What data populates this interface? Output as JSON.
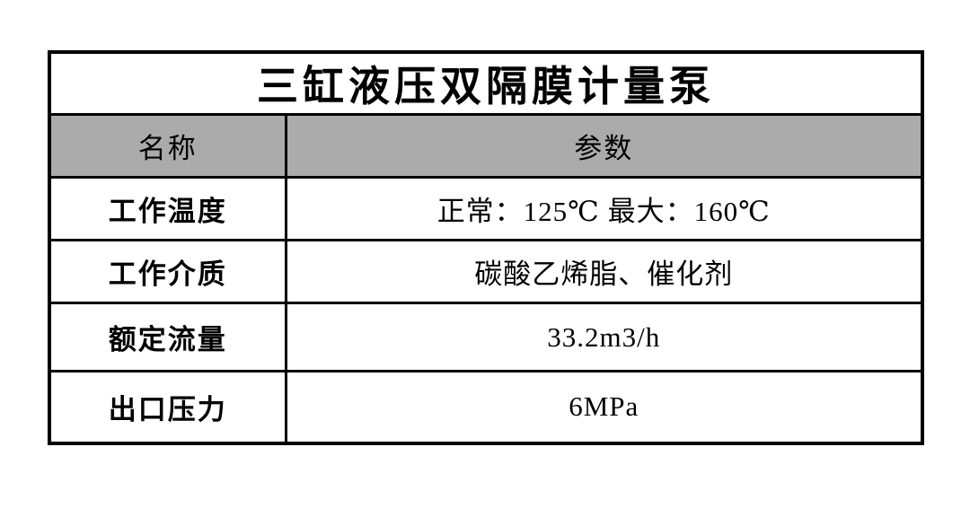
{
  "table": {
    "title": "三缸液压双隔膜计量泵",
    "header": {
      "name_label": "名称",
      "param_label": "参数"
    },
    "rows": [
      {
        "name": "工作温度",
        "value": "正常：125℃ 最大：160℃"
      },
      {
        "name": "工作介质",
        "value": "碳酸乙烯脂、催化剂"
      },
      {
        "name": "额定流量",
        "value": "33.2m3/h"
      },
      {
        "name": "出口压力",
        "value": "6MPa"
      }
    ],
    "colors": {
      "header_bg": "#ABABAB",
      "border": "#000000",
      "text": "#000000",
      "background": "#ffffff"
    }
  }
}
